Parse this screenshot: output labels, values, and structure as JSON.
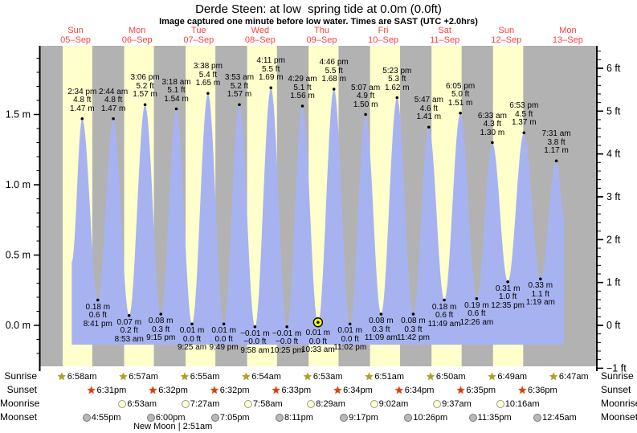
{
  "title": "Derde Steen: at low  spring tide at 0.0m (0.0ft)",
  "subtitle": "Image captured one minute before low water. Times are SAST (UTC +2.0hrs)",
  "colors": {
    "night_band": "#b2b2b2",
    "day_band": "#ffffcc",
    "tide_fill": "#a7b3f0",
    "day_label_red": "#ff4040",
    "axis_black": "#000000",
    "current_marker_yellow": "#ffff00",
    "sunrise_star": "#b3a019",
    "sunset_star": "#e13d0a",
    "moonrise_disc": "#ffffc8",
    "moonrise_disc_border": "#999999",
    "moonset_disc": "#b9b9b9",
    "moonset_disc_border": "#777777"
  },
  "days": [
    {
      "dow": "Sun",
      "date": "05–Sep"
    },
    {
      "dow": "Mon",
      "date": "06–Sep"
    },
    {
      "dow": "Tue",
      "date": "07–Sep"
    },
    {
      "dow": "Wed",
      "date": "08–Sep"
    },
    {
      "dow": "Thu",
      "date": "09–Sep"
    },
    {
      "dow": "Fri",
      "date": "10–Sep"
    },
    {
      "dow": "Sat",
      "date": "11–Sep"
    },
    {
      "dow": "Sun",
      "date": "12–Sep"
    },
    {
      "dow": "Mon",
      "date": "13–Sep"
    }
  ],
  "y_axis_left": {
    "unit": "m",
    "major_ticks": [
      {
        "label": "1.5 m",
        "value": 1.5
      },
      {
        "label": "1.0 m",
        "value": 1.0
      },
      {
        "label": "0.5 m",
        "value": 0.5
      },
      {
        "label": "0.0 m",
        "value": 0.0
      }
    ],
    "minor_step_m": 0.1
  },
  "y_axis_right": {
    "unit": "ft",
    "major_ticks": [
      {
        "label": "6 ft",
        "value": 6
      },
      {
        "label": "5 ft",
        "value": 5
      },
      {
        "label": "4 ft",
        "value": 4
      },
      {
        "label": "3 ft",
        "value": 3
      },
      {
        "label": "2 ft",
        "value": 2
      },
      {
        "label": "1 ft",
        "value": 1
      },
      {
        "label": "0 ft",
        "value": 0
      },
      {
        "label": "−1 ft",
        "value": -1
      }
    ],
    "minor_step_ft": 0.2
  },
  "chart_data": {
    "type": "area",
    "series_name": "tide height",
    "x_unit": "days (05-Sep to 13-Sep), SAST",
    "y_units": [
      "m",
      "ft"
    ],
    "ylim_m": [
      -0.3,
      1.99
    ],
    "grid": false,
    "baseline_m": -0.137,
    "curve_start": {
      "day": 0,
      "hour": 10.5,
      "level_m": 0.45
    },
    "curve_end": {
      "day": 8,
      "hour": 10.5,
      "level_m": 0.78
    },
    "tides": [
      {
        "day": 0,
        "kind": "high",
        "time": "2:34 pm",
        "ft": "4.8 ft",
        "m": "1.47 m"
      },
      {
        "day": 0,
        "kind": "low",
        "time": "8:41 pm",
        "ft": "0.6 ft",
        "m": "0.18 m"
      },
      {
        "day": 1,
        "kind": "high",
        "time": "2:44 am",
        "ft": "4.8 ft",
        "m": "1.47 m"
      },
      {
        "day": 1,
        "kind": "low",
        "time": "8:53 am",
        "ft": "0.2 ft",
        "m": "0.07 m"
      },
      {
        "day": 1,
        "kind": "high",
        "time": "3:06 pm",
        "ft": "5.2 ft",
        "m": "1.57 m"
      },
      {
        "day": 1,
        "kind": "low",
        "time": "9:15 pm",
        "ft": "0.3 ft",
        "m": "0.08 m"
      },
      {
        "day": 2,
        "kind": "high",
        "time": "3:18 am",
        "ft": "5.1 ft",
        "m": "1.54 m"
      },
      {
        "day": 2,
        "kind": "low",
        "time": "9:25 am",
        "ft": "0.0 ft",
        "m": "0.01 m"
      },
      {
        "day": 2,
        "kind": "high",
        "time": "3:38 pm",
        "ft": "5.4 ft",
        "m": "1.65 m"
      },
      {
        "day": 2,
        "kind": "low",
        "time": "9:49 pm",
        "ft": "0.0 ft",
        "m": "0.01 m"
      },
      {
        "day": 3,
        "kind": "high",
        "time": "3:53 am",
        "ft": "5.2 ft",
        "m": "1.57 m"
      },
      {
        "day": 3,
        "kind": "low",
        "time": "9:58 am",
        "ft": "−0.0 ft",
        "m": "−0.01 m"
      },
      {
        "day": 3,
        "kind": "high",
        "time": "4:11 pm",
        "ft": "5.5 ft",
        "m": "1.69 m"
      },
      {
        "day": 3,
        "kind": "low",
        "time": "10:25 pm",
        "ft": "−0.0 ft",
        "m": "−0.01 m"
      },
      {
        "day": 4,
        "kind": "high",
        "time": "4:29 am",
        "ft": "5.1 ft",
        "m": "1.56 m"
      },
      {
        "day": 4,
        "kind": "low",
        "time": "10:33 am",
        "ft": "0.0 ft",
        "m": "0.01 m",
        "current": true
      },
      {
        "day": 4,
        "kind": "high",
        "time": "4:46 pm",
        "ft": "5.5 ft",
        "m": "1.68 m"
      },
      {
        "day": 4,
        "kind": "low",
        "time": "11:02 pm",
        "ft": "0.0 ft",
        "m": "0.01 m"
      },
      {
        "day": 5,
        "kind": "high",
        "time": "5:07 am",
        "ft": "4.9 ft",
        "m": "1.50 m"
      },
      {
        "day": 5,
        "kind": "low",
        "time": "11:09 am",
        "ft": "0.3 ft",
        "m": "0.08 m"
      },
      {
        "day": 5,
        "kind": "high",
        "time": "5:23 pm",
        "ft": "5.3 ft",
        "m": "1.62 m"
      },
      {
        "day": 5,
        "kind": "low",
        "time": "11:42 pm",
        "ft": "0.3 ft",
        "m": "0.08 m"
      },
      {
        "day": 6,
        "kind": "high",
        "time": "5:47 am",
        "ft": "4.6 ft",
        "m": "1.41 m"
      },
      {
        "day": 6,
        "kind": "low",
        "time": "11:49 am",
        "ft": "0.6 ft",
        "m": "0.18 m"
      },
      {
        "day": 6,
        "kind": "high",
        "time": "6:05 pm",
        "ft": "5.0 ft",
        "m": "1.51 m"
      },
      {
        "day": 7,
        "kind": "low",
        "time": "12:26 am",
        "ft": "0.6 ft",
        "m": "0.19 m"
      },
      {
        "day": 7,
        "kind": "high",
        "time": "6:33 am",
        "ft": "4.3 ft",
        "m": "1.30 m"
      },
      {
        "day": 7,
        "kind": "low",
        "time": "12:35 pm",
        "ft": "1.0 ft",
        "m": "0.31 m"
      },
      {
        "day": 7,
        "kind": "high",
        "time": "6:53 pm",
        "ft": "4.5 ft",
        "m": "1.37 m"
      },
      {
        "day": 8,
        "kind": "low",
        "time": "1:19 am",
        "ft": "1.1 ft",
        "m": "0.33 m"
      },
      {
        "day": 8,
        "kind": "high",
        "time": "7:31 am",
        "ft": "3.8 ft",
        "m": "1.17 m"
      }
    ]
  },
  "astro": {
    "row_labels": [
      "Sunrise",
      "Sunset",
      "Moonrise",
      "Moonset"
    ],
    "sunrise": [
      {
        "day": 0,
        "time": "6:58am"
      },
      {
        "day": 1,
        "time": "6:57am"
      },
      {
        "day": 2,
        "time": "6:55am"
      },
      {
        "day": 3,
        "time": "6:54am"
      },
      {
        "day": 4,
        "time": "6:53am"
      },
      {
        "day": 5,
        "time": "6:51am"
      },
      {
        "day": 6,
        "time": "6:50am"
      },
      {
        "day": 7,
        "time": "6:49am"
      },
      {
        "day": 8,
        "time": "6:47am"
      }
    ],
    "sunset": [
      {
        "day": 0,
        "time": "6:31pm"
      },
      {
        "day": 1,
        "time": "6:32pm"
      },
      {
        "day": 2,
        "time": "6:32pm"
      },
      {
        "day": 3,
        "time": "6:33pm"
      },
      {
        "day": 4,
        "time": "6:34pm"
      },
      {
        "day": 5,
        "time": "6:34pm"
      },
      {
        "day": 6,
        "time": "6:35pm"
      },
      {
        "day": 7,
        "time": "6:36pm"
      }
    ],
    "moonrise": [
      {
        "day": 1,
        "time": "6:53am"
      },
      {
        "day": 2,
        "time": "7:27am"
      },
      {
        "day": 3,
        "time": "7:58am"
      },
      {
        "day": 4,
        "time": "8:29am"
      },
      {
        "day": 5,
        "time": "9:02am"
      },
      {
        "day": 6,
        "time": "9:37am"
      },
      {
        "day": 7,
        "time": "10:16am"
      }
    ],
    "moonset": [
      {
        "day": 0,
        "time": "4:55pm"
      },
      {
        "day": 1,
        "time": "6:00pm"
      },
      {
        "day": 2,
        "time": "7:05pm"
      },
      {
        "day": 3,
        "time": "8:11pm"
      },
      {
        "day": 4,
        "time": "9:17pm"
      },
      {
        "day": 5,
        "time": "10:26pm"
      },
      {
        "day": 6,
        "time": "11:35pm"
      },
      {
        "day": 8,
        "time": "12:45am"
      }
    ],
    "new_moon": "New Moon | 2:51am"
  }
}
